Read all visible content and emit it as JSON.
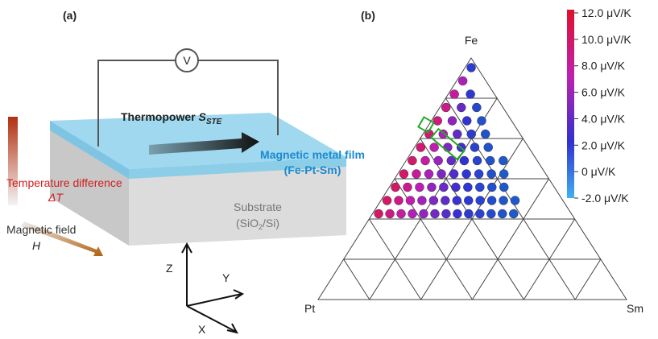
{
  "panel_a": {
    "label": "(a)",
    "voltmeter": "V",
    "thermopower": "Thermopower",
    "thermopower_symbol": "S",
    "thermopower_subscript": "STE",
    "film": "Magnetic metal film",
    "film_composition": "(Fe-Pt-Sm)",
    "temperature": "Temperature difference",
    "temperature_symbol": "ΔT",
    "field": "Magnetic field",
    "field_symbol": "H",
    "substrate": "Substrate",
    "substrate_material_pre": "(SiO",
    "substrate_material_sub": "2",
    "substrate_material_post": "/Si)",
    "axes": {
      "z": "Z",
      "y": "Y",
      "x": "X"
    }
  },
  "panel_b": {
    "label": "(b)",
    "vertices": {
      "top": "Fe",
      "left": "Pt",
      "right": "Sm"
    },
    "colorbar_ticks": [
      "12.0 μV/K",
      "10.0 μV/K",
      "8.0 μV/K",
      "6.0 μV/K",
      "4.0 μV/K",
      "2.0 μV/K",
      "0 μV/K",
      "-2.0 μV/K"
    ]
  }
}
